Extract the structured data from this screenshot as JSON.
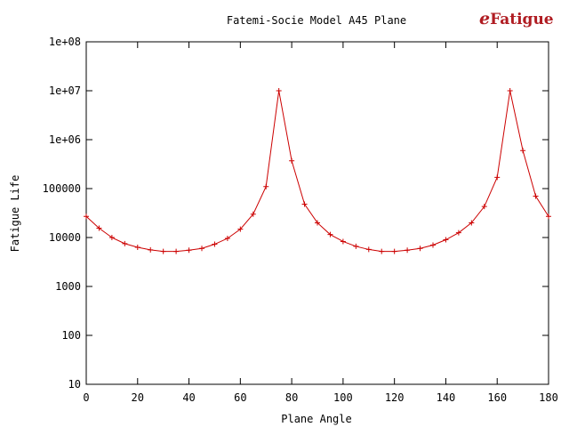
{
  "logo": {
    "prefix": "e",
    "name": "Fatigue",
    "color": "#b01c22"
  },
  "chart_data": {
    "type": "line",
    "title": "Fatemi-Socie Model A45 Plane",
    "xlabel": "Plane Angle",
    "ylabel": "Fatigue Life",
    "xlim": [
      0,
      180
    ],
    "ylim": [
      10,
      100000000
    ],
    "y_scale": "log",
    "grid": false,
    "x_ticks": [
      0,
      20,
      40,
      60,
      80,
      100,
      120,
      140,
      160,
      180
    ],
    "x_tick_labels": [
      "0",
      "20",
      "40",
      "60",
      "80",
      "100",
      "120",
      "140",
      "160",
      "180"
    ],
    "y_ticks": [
      10,
      100,
      1000,
      10000,
      100000,
      1000000,
      10000000,
      100000000
    ],
    "y_tick_labels": [
      "10",
      "100",
      "1000",
      "10000",
      "100000",
      "1e+06",
      "1e+07",
      "1e+08"
    ],
    "series": [
      {
        "color": "#cc0000",
        "marker": "plus",
        "x": [
          0,
          5,
          10,
          15,
          20,
          25,
          30,
          35,
          40,
          45,
          50,
          55,
          60,
          65,
          70,
          75,
          80,
          85,
          90,
          95,
          100,
          105,
          110,
          115,
          120,
          125,
          130,
          135,
          140,
          145,
          150,
          155,
          160,
          165,
          170,
          175,
          180
        ],
        "y": [
          27000,
          15500,
          10000,
          7500,
          6300,
          5600,
          5200,
          5200,
          5500,
          6000,
          7300,
          9600,
          14800,
          30000,
          110000,
          10000000,
          370000,
          48000,
          20000,
          11500,
          8300,
          6600,
          5700,
          5200,
          5200,
          5500,
          6000,
          7000,
          9000,
          12500,
          20000,
          43000,
          170000,
          10000000,
          600000,
          70000,
          27000
        ]
      }
    ]
  }
}
